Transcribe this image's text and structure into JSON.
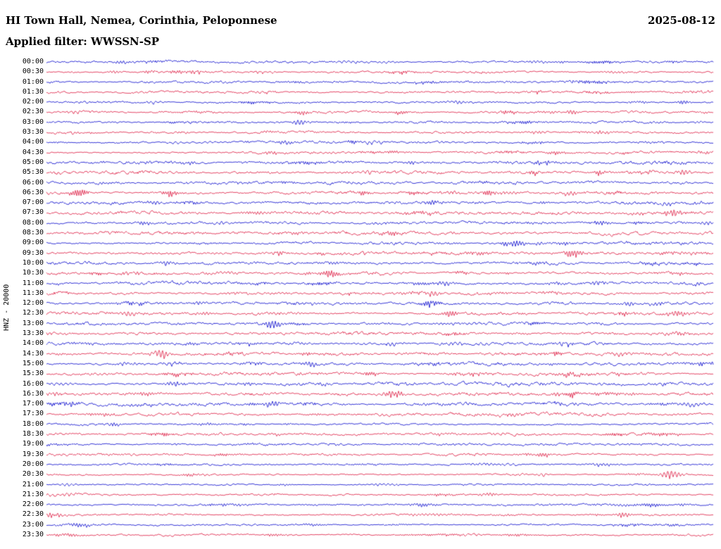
{
  "header": {
    "title": "HI Town Hall, Nemea, Corinthia, Peloponnese",
    "date": "2025-08-12",
    "filter_label": "Applied filter: WWSSN-SP"
  },
  "y_axis_label": "HNZ - 20000",
  "chart_data": {
    "type": "seismogram-helicorder",
    "title": "HI Town Hall, Nemea, Corinthia, Peloponnese",
    "date": "2025-08-12",
    "filter": "WWSSN-SP",
    "channel_scale_label": "HNZ - 20000",
    "row_interval_minutes": 30,
    "rows_count": 48,
    "legend_position": "none",
    "grid": false,
    "colors": {
      "blue": "#0000CC",
      "red": "#DC143C"
    },
    "rows": [
      {
        "t": "00:00",
        "color": "blue"
      },
      {
        "t": "00:30",
        "color": "red"
      },
      {
        "t": "01:00",
        "color": "blue"
      },
      {
        "t": "01:30",
        "color": "red"
      },
      {
        "t": "02:00",
        "color": "blue"
      },
      {
        "t": "02:30",
        "color": "red"
      },
      {
        "t": "03:00",
        "color": "blue"
      },
      {
        "t": "03:30",
        "color": "red"
      },
      {
        "t": "04:00",
        "color": "blue"
      },
      {
        "t": "04:30",
        "color": "red"
      },
      {
        "t": "05:00",
        "color": "blue"
      },
      {
        "t": "05:30",
        "color": "red"
      },
      {
        "t": "06:00",
        "color": "blue"
      },
      {
        "t": "06:30",
        "color": "red"
      },
      {
        "t": "07:00",
        "color": "blue"
      },
      {
        "t": "07:30",
        "color": "red"
      },
      {
        "t": "08:00",
        "color": "blue"
      },
      {
        "t": "08:30",
        "color": "red"
      },
      {
        "t": "09:00",
        "color": "blue"
      },
      {
        "t": "09:30",
        "color": "red"
      },
      {
        "t": "10:00",
        "color": "blue"
      },
      {
        "t": "10:30",
        "color": "red"
      },
      {
        "t": "11:00",
        "color": "blue"
      },
      {
        "t": "11:30",
        "color": "red"
      },
      {
        "t": "12:00",
        "color": "blue"
      },
      {
        "t": "12:30",
        "color": "red"
      },
      {
        "t": "13:00",
        "color": "blue"
      },
      {
        "t": "13:30",
        "color": "red"
      },
      {
        "t": "14:00",
        "color": "blue"
      },
      {
        "t": "14:30",
        "color": "red"
      },
      {
        "t": "15:00",
        "color": "blue"
      },
      {
        "t": "15:30",
        "color": "red"
      },
      {
        "t": "16:00",
        "color": "blue"
      },
      {
        "t": "16:30",
        "color": "red"
      },
      {
        "t": "17:00",
        "color": "blue"
      },
      {
        "t": "17:30",
        "color": "red"
      },
      {
        "t": "18:00",
        "color": "blue"
      },
      {
        "t": "18:30",
        "color": "red"
      },
      {
        "t": "19:00",
        "color": "blue"
      },
      {
        "t": "19:30",
        "color": "red"
      },
      {
        "t": "20:00",
        "color": "blue"
      },
      {
        "t": "20:30",
        "color": "red"
      },
      {
        "t": "21:00",
        "color": "blue"
      },
      {
        "t": "21:30",
        "color": "red"
      },
      {
        "t": "22:00",
        "color": "blue"
      },
      {
        "t": "22:30",
        "color": "red"
      },
      {
        "t": "23:00",
        "color": "blue"
      },
      {
        "t": "23:30",
        "color": "red"
      }
    ],
    "events": [
      {
        "row": 1,
        "x": 0.1,
        "amp": 3,
        "w": 10
      },
      {
        "row": 1,
        "x": 0.155,
        "amp": 3,
        "w": 9
      },
      {
        "row": 4,
        "x": 0.955,
        "amp": 4,
        "w": 10
      },
      {
        "row": 5,
        "x": 0.385,
        "amp": 3.5,
        "w": 10
      },
      {
        "row": 5,
        "x": 0.69,
        "amp": 4,
        "w": 11
      },
      {
        "row": 5,
        "x": 0.785,
        "amp": 4.5,
        "w": 11
      },
      {
        "row": 6,
        "x": 0.38,
        "amp": 5,
        "w": 12
      },
      {
        "row": 7,
        "x": 0.33,
        "amp": 3,
        "w": 9
      },
      {
        "row": 8,
        "x": 0.355,
        "amp": 4,
        "w": 10
      },
      {
        "row": 9,
        "x": 0.335,
        "amp": 3.5,
        "w": 10
      },
      {
        "row": 9,
        "x": 0.515,
        "amp": 3.5,
        "w": 12
      },
      {
        "row": 10,
        "x": 0.545,
        "amp": 3,
        "w": 10
      },
      {
        "row": 11,
        "x": 0.73,
        "amp": 4,
        "w": 10
      },
      {
        "row": 11,
        "x": 0.83,
        "amp": 4,
        "w": 10
      },
      {
        "row": 11,
        "x": 0.955,
        "amp": 5,
        "w": 12
      },
      {
        "row": 12,
        "x": 0.655,
        "amp": 3.5,
        "w": 10
      },
      {
        "row": 13,
        "x": 0.05,
        "amp": 8,
        "w": 13
      },
      {
        "row": 13,
        "x": 0.185,
        "amp": 5,
        "w": 11
      },
      {
        "row": 13,
        "x": 0.475,
        "amp": 3.5,
        "w": 10
      },
      {
        "row": 13,
        "x": 0.66,
        "amp": 4.5,
        "w": 11
      },
      {
        "row": 13,
        "x": 0.785,
        "amp": 4,
        "w": 11
      },
      {
        "row": 14,
        "x": 0.58,
        "amp": 5,
        "w": 12
      },
      {
        "row": 15,
        "x": 0.885,
        "amp": 4,
        "w": 10
      },
      {
        "row": 15,
        "x": 0.94,
        "amp": 7,
        "w": 13
      },
      {
        "row": 16,
        "x": 0.83,
        "amp": 4,
        "w": 11
      },
      {
        "row": 18,
        "x": 0.705,
        "amp": 6,
        "w": 12
      },
      {
        "row": 19,
        "x": 0.35,
        "amp": 4,
        "w": 11
      },
      {
        "row": 19,
        "x": 0.79,
        "amp": 6,
        "w": 14
      },
      {
        "row": 20,
        "x": 0.18,
        "amp": 4,
        "w": 11
      },
      {
        "row": 21,
        "x": 0.425,
        "amp": 7,
        "w": 13
      },
      {
        "row": 21,
        "x": 0.62,
        "amp": 3.5,
        "w": 10
      },
      {
        "row": 22,
        "x": 0.595,
        "amp": 4,
        "w": 11
      },
      {
        "row": 22,
        "x": 0.825,
        "amp": 4,
        "w": 11
      },
      {
        "row": 23,
        "x": 0.58,
        "amp": 4,
        "w": 11
      },
      {
        "row": 24,
        "x": 0.23,
        "amp": 3.5,
        "w": 10
      },
      {
        "row": 24,
        "x": 0.575,
        "amp": 6,
        "w": 12
      },
      {
        "row": 24,
        "x": 0.915,
        "amp": 3.5,
        "w": 10
      },
      {
        "row": 25,
        "x": 0.125,
        "amp": 3.5,
        "w": 10
      },
      {
        "row": 25,
        "x": 0.605,
        "amp": 6,
        "w": 13
      },
      {
        "row": 25,
        "x": 0.945,
        "amp": 6,
        "w": 13
      },
      {
        "row": 26,
        "x": 0.34,
        "amp": 7,
        "w": 13
      },
      {
        "row": 29,
        "x": 0.17,
        "amp": 8,
        "w": 14
      },
      {
        "row": 30,
        "x": 0.395,
        "amp": 4.5,
        "w": 11
      },
      {
        "row": 31,
        "x": 0.485,
        "amp": 4,
        "w": 12
      },
      {
        "row": 31,
        "x": 0.785,
        "amp": 4,
        "w": 11
      },
      {
        "row": 32,
        "x": 0.19,
        "amp": 5,
        "w": 12
      },
      {
        "row": 33,
        "x": 0.52,
        "amp": 7,
        "w": 14
      },
      {
        "row": 33,
        "x": 0.79,
        "amp": 5,
        "w": 12
      },
      {
        "row": 34,
        "x": 0.035,
        "amp": 4,
        "w": 10
      },
      {
        "row": 34,
        "x": 0.34,
        "amp": 7,
        "w": 12
      },
      {
        "row": 36,
        "x": 0.1,
        "amp": 3,
        "w": 9
      },
      {
        "row": 41,
        "x": 0.935,
        "amp": 9,
        "w": 13
      },
      {
        "row": 44,
        "x": 0.27,
        "amp": 3,
        "w": 10
      },
      {
        "row": 45,
        "x": 0.865,
        "amp": 5,
        "w": 12
      }
    ]
  }
}
